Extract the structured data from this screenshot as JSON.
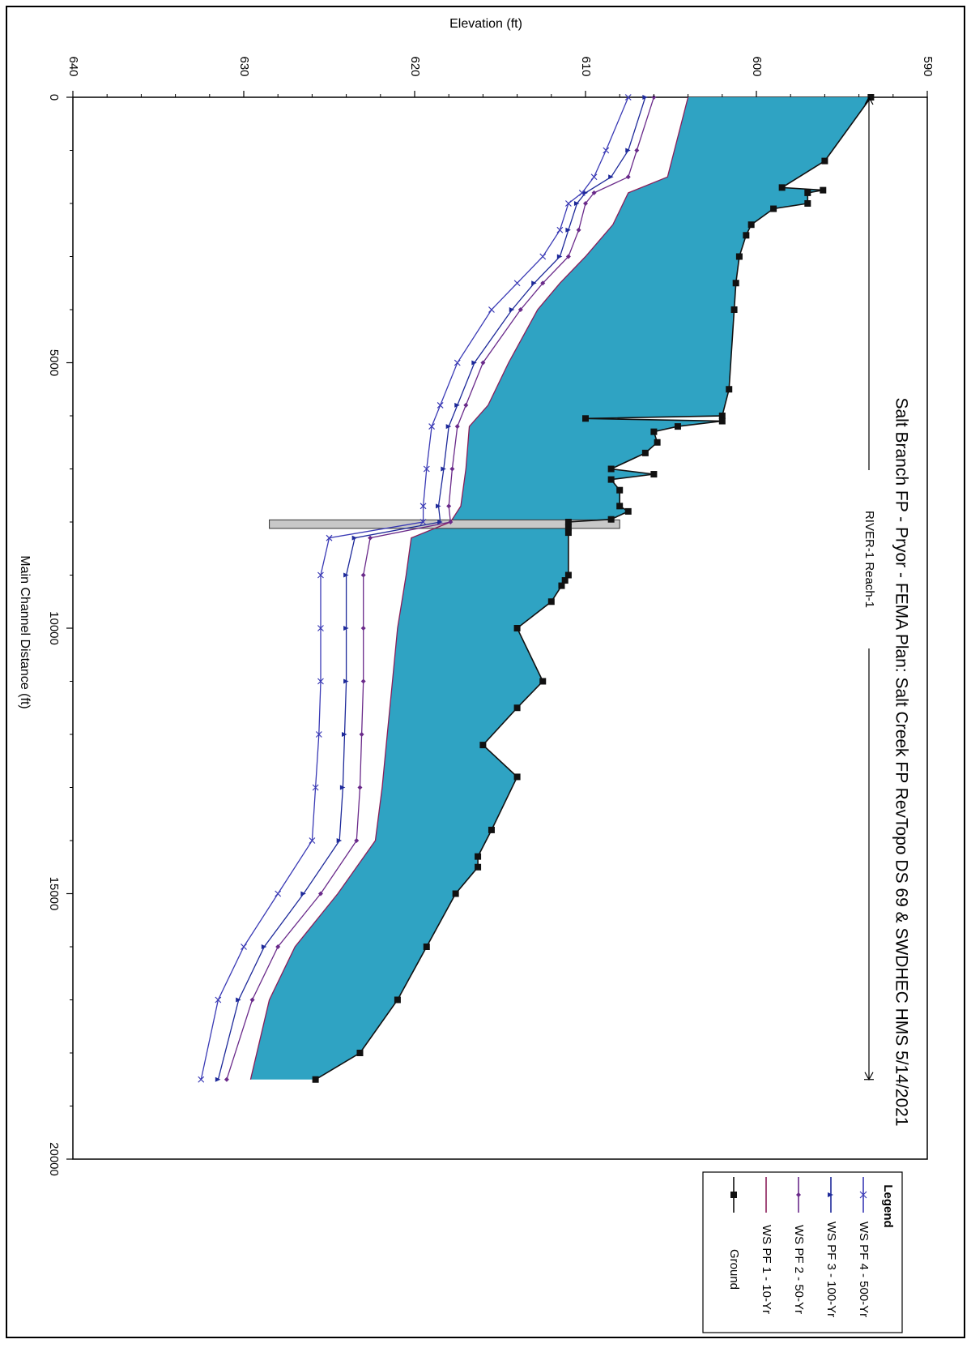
{
  "chart_data": {
    "type": "line",
    "title": "Salt Branch FP - Pryor - FEMA      Plan: Salt Creek FP RevTopo DS 69 & SWDHEC HMS      5/14/2021",
    "subtitle": "RIVER-1 Reach-1",
    "xlabel": "Main Channel Distance (ft)",
    "ylabel": "Elevation (ft)",
    "xlim": [
      0,
      20000
    ],
    "ylim": [
      590,
      640
    ],
    "xticks": [
      "0",
      "5000",
      "10000",
      "15000",
      "20000"
    ],
    "yticks": [
      "590",
      "600",
      "610",
      "620",
      "630",
      "640"
    ],
    "orientation": "rotated-90-clockwise",
    "reach_marker": {
      "start": 0,
      "end": 18500
    },
    "legend": {
      "title": "Legend",
      "placement": "bottom-right",
      "entries": [
        {
          "label": "WS  PF 4 - 500-Yr",
          "color": "#3a3ab5",
          "marker": "x"
        },
        {
          "label": "WS  PF 3 - 100-Yr",
          "color": "#1e2a9a",
          "marker": "triangle"
        },
        {
          "label": "WS  PF 2 - 50-Yr",
          "color": "#6a2a8a",
          "marker": "diamond"
        },
        {
          "label": "WS  PF 1 - 10-Yr",
          "color": "#8a1e5a",
          "marker": "none"
        },
        {
          "label": "Ground",
          "color": "#111111",
          "marker": "square"
        }
      ]
    },
    "colors": {
      "fill": "#2fa3c3",
      "structure": "#c8c8c8"
    },
    "series": [
      {
        "name": "Ground",
        "x": [
          0,
          1200,
          1700,
          1750,
          1800,
          2000,
          2100,
          2400,
          2600,
          3000,
          3500,
          4000,
          5500,
          6000,
          6050,
          6100,
          6200,
          6300,
          6500,
          6700,
          7000,
          7100,
          7200,
          7400,
          7700,
          7800,
          7950,
          8000,
          8100,
          8200,
          9000,
          9100,
          9200,
          9500,
          10000,
          11000,
          11500,
          12200,
          12800,
          13800,
          14300,
          14500,
          15000,
          16000,
          17000,
          18000,
          18500
        ],
        "y": [
          593.3,
          596.0,
          598.5,
          596.1,
          597.0,
          597.0,
          599.0,
          600.3,
          600.6,
          601.0,
          601.2,
          601.3,
          601.6,
          602.0,
          610.0,
          602.0,
          604.6,
          606.0,
          605.8,
          606.5,
          608.5,
          606.0,
          608.5,
          608.0,
          608.0,
          607.5,
          608.5,
          611.0,
          611.0,
          611.0,
          611.0,
          611.2,
          611.4,
          612.0,
          614.0,
          612.5,
          614.0,
          616.0,
          614.0,
          615.5,
          616.3,
          616.3,
          617.6,
          619.3,
          621.0,
          623.2,
          625.8
        ],
        "color": "#111111"
      },
      {
        "name": "WS  PF 1 - 10-Yr",
        "x": [
          0,
          1500,
          1800,
          2400,
          3000,
          3500,
          4000,
          5000,
          5800,
          6200,
          7000,
          7700,
          8000,
          8300,
          9000,
          10000,
          11000,
          12000,
          13000,
          14000,
          15000,
          16000,
          17000,
          18500
        ],
        "y": [
          604.0,
          605.2,
          607.5,
          608.4,
          610.0,
          611.5,
          612.8,
          614.5,
          615.7,
          616.8,
          617.0,
          617.3,
          617.9,
          620.2,
          620.5,
          621.0,
          621.3,
          621.6,
          621.9,
          622.3,
          624.5,
          627.0,
          628.5,
          629.6
        ],
        "color": "#8a1e5a"
      },
      {
        "name": "WS  PF 2 - 50-Yr",
        "x": [
          0,
          1000,
          1500,
          1800,
          2000,
          2500,
          3000,
          3500,
          4000,
          5000,
          5800,
          6200,
          7000,
          7700,
          8000,
          8300,
          9000,
          10000,
          11000,
          12000,
          13000,
          14000,
          15000,
          16000,
          17000,
          18500
        ],
        "y": [
          606.0,
          607.0,
          607.5,
          609.5,
          610.0,
          610.4,
          611.0,
          612.5,
          613.8,
          616.0,
          617.0,
          617.5,
          617.8,
          618.0,
          617.9,
          622.6,
          623.0,
          623.0,
          623.0,
          623.1,
          623.2,
          623.4,
          625.5,
          628.0,
          629.5,
          631.0
        ],
        "color": "#6a2a8a"
      },
      {
        "name": "WS  PF 3 - 100-Yr",
        "x": [
          0,
          1000,
          1500,
          1800,
          2000,
          2500,
          3000,
          3500,
          4000,
          5000,
          5800,
          6200,
          7000,
          7700,
          8000,
          8300,
          9000,
          10000,
          11000,
          12000,
          13000,
          14000,
          15000,
          16000,
          17000,
          18500
        ],
        "y": [
          606.5,
          607.5,
          608.5,
          610.0,
          610.5,
          611.0,
          611.5,
          613.0,
          614.3,
          616.5,
          617.5,
          618.0,
          618.3,
          618.6,
          618.5,
          623.5,
          624.0,
          624.0,
          624.0,
          624.1,
          624.2,
          624.4,
          626.5,
          628.8,
          630.3,
          631.5
        ],
        "color": "#1e2a9a"
      },
      {
        "name": "WS  PF 4 - 500-Yr",
        "x": [
          0,
          1000,
          1500,
          1800,
          2000,
          2500,
          3000,
          3500,
          4000,
          5000,
          5800,
          6200,
          7000,
          7700,
          8000,
          8300,
          9000,
          10000,
          11000,
          12000,
          13000,
          14000,
          15000,
          16000,
          17000,
          18500
        ],
        "y": [
          607.5,
          608.8,
          609.5,
          610.2,
          611.0,
          611.5,
          612.5,
          614.0,
          615.5,
          617.5,
          618.5,
          619.0,
          619.3,
          619.5,
          619.5,
          625.0,
          625.5,
          625.5,
          625.5,
          625.6,
          625.8,
          626.0,
          628.0,
          630.0,
          631.5,
          632.5
        ],
        "color": "#3a3ab5"
      }
    ]
  }
}
